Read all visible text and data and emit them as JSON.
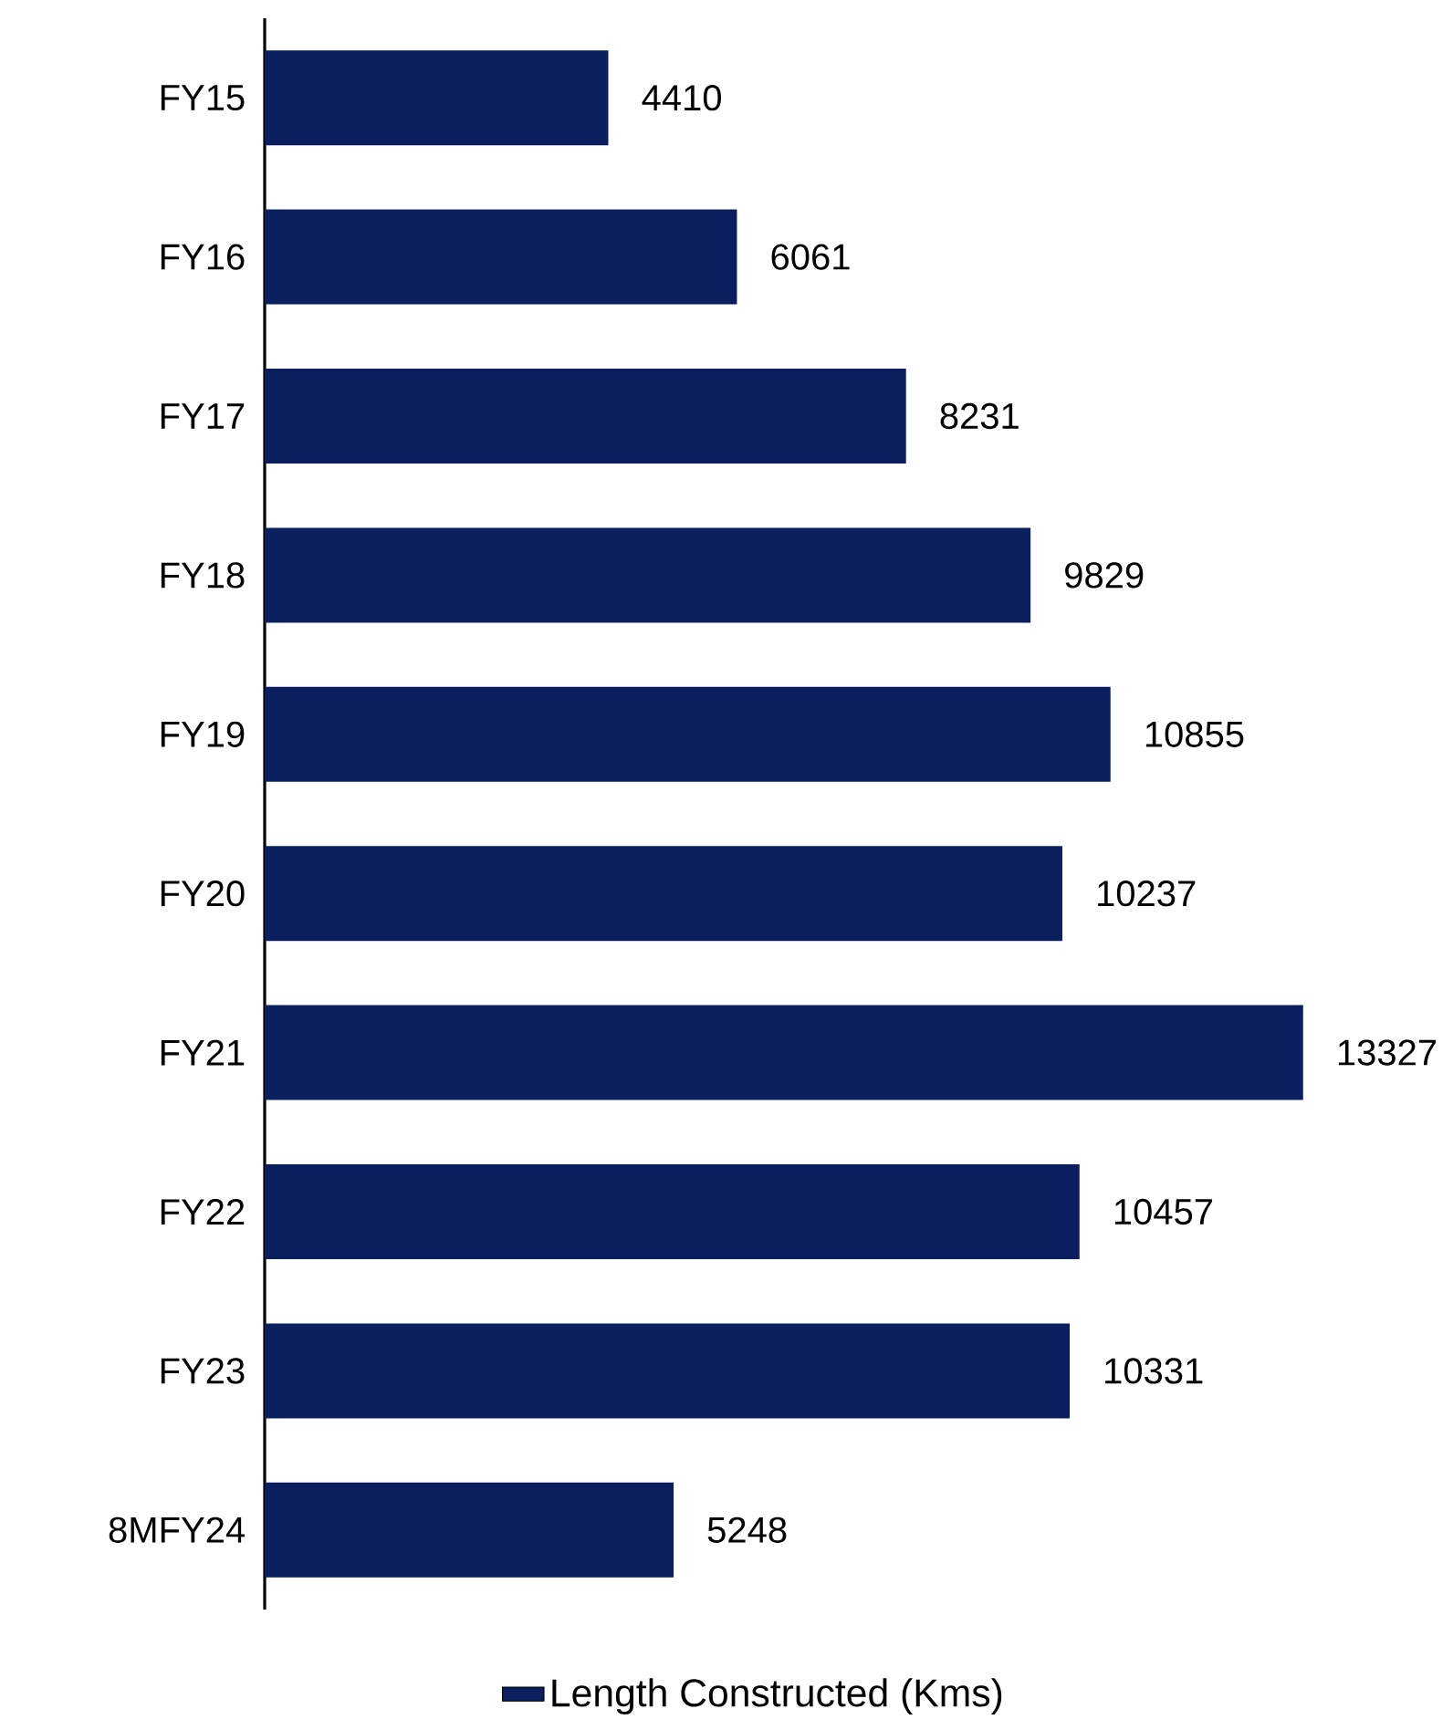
{
  "chart_data": {
    "type": "bar",
    "orientation": "horizontal",
    "categories": [
      "FY15",
      "FY16",
      "FY17",
      "FY18",
      "FY19",
      "FY20",
      "FY21",
      "FY22",
      "FY23",
      "8MFY24"
    ],
    "series": [
      {
        "name": "Length Constructed (Kms)",
        "color": "#0b1f5e",
        "values": [
          4410,
          6061,
          8231,
          9829,
          10855,
          10237,
          13327,
          10457,
          10331,
          5248
        ]
      }
    ],
    "data_labels": true,
    "legend": "bottom"
  }
}
